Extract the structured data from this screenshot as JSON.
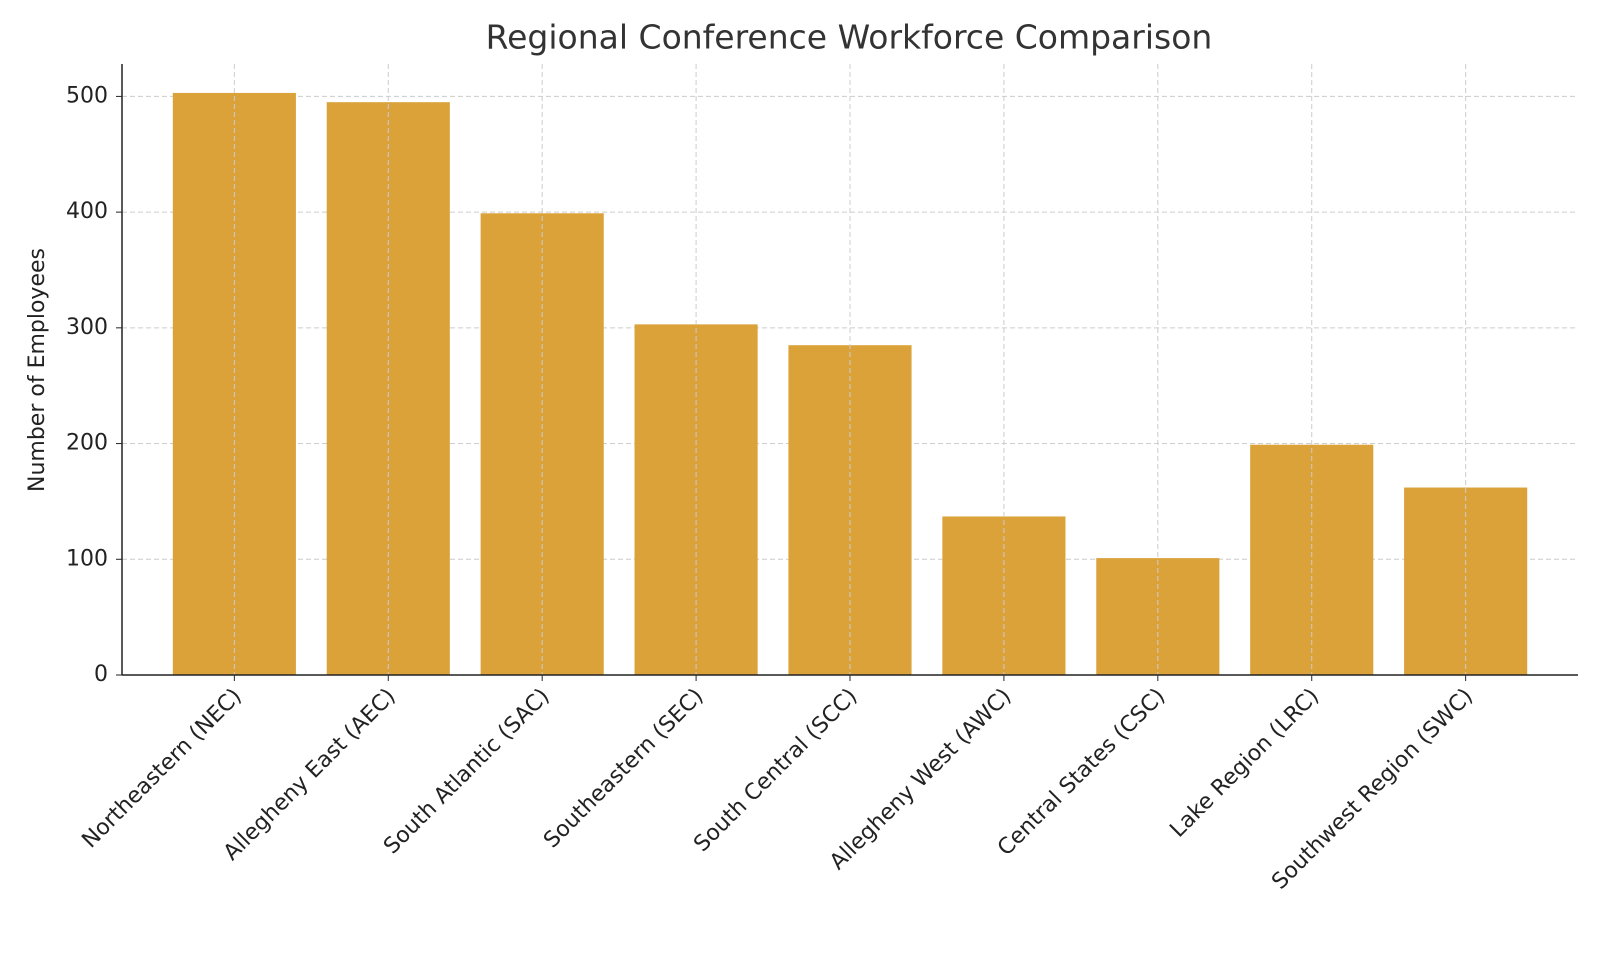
{
  "chart_data": {
    "type": "bar",
    "title": "Regional Conference Workforce Comparison",
    "y_label": "Number of Employees",
    "categories": [
      "Northeastern (NEC)",
      "Allegheny East (AEC)",
      "South Atlantic (SAC)",
      "Southeastern (SEC)",
      "South Central (SCC)",
      "Allegheny West (AWC)",
      "Central States (CSC)",
      "Lake Region (LRC)",
      "Southwest Region (SWC)"
    ],
    "values": [
      503,
      495,
      399,
      303,
      285,
      137,
      101,
      199,
      162
    ],
    "color": "#dba239",
    "ylim": [
      0,
      528
    ],
    "yticks": [
      0,
      100,
      200,
      300,
      400,
      500
    ],
    "grid": true
  }
}
